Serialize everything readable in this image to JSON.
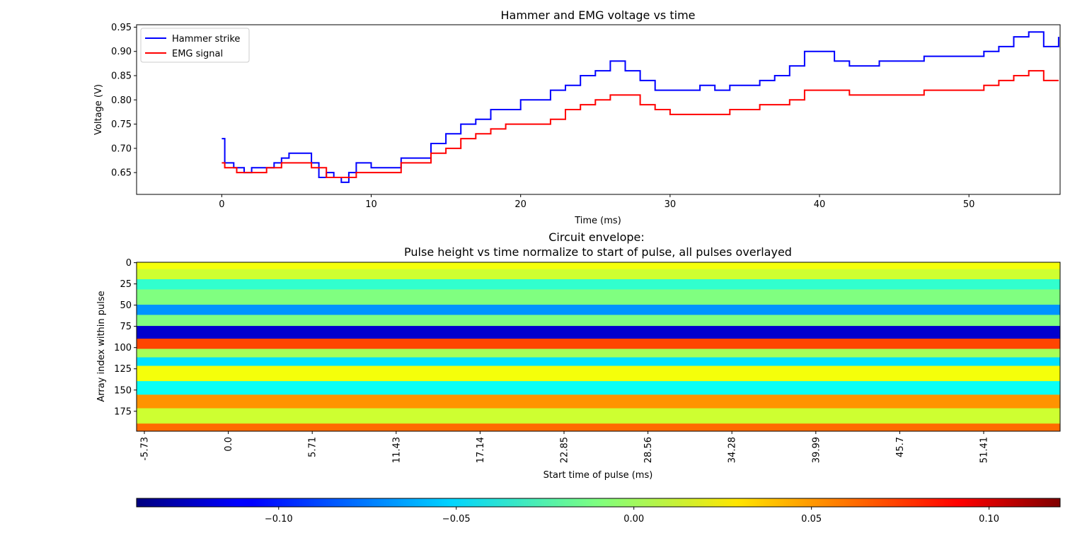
{
  "chart_data": [
    {
      "type": "line",
      "title": "Hammer and EMG voltage vs time",
      "xlabel": "Time (ms)",
      "ylabel": "Voltage (V)",
      "xlim": [
        -5.7,
        56.1
      ],
      "ylim": [
        0.605,
        0.955
      ],
      "xticks": [
        0,
        10,
        20,
        30,
        40,
        50
      ],
      "xtick_labels": [
        "0",
        "10",
        "20",
        "30",
        "40",
        "50"
      ],
      "yticks": [
        0.65,
        0.7,
        0.75,
        0.8,
        0.85,
        0.9,
        0.95
      ],
      "ytick_labels": [
        "0.65",
        "0.70",
        "0.75",
        "0.80",
        "0.85",
        "0.90",
        "0.95"
      ],
      "legend_position": "top-left",
      "grid": false,
      "series": [
        {
          "name": "Hammer strike",
          "color": "#0000ff",
          "points": [
            [
              0,
              0.72
            ],
            [
              0.2,
              0.67
            ],
            [
              0.8,
              0.66
            ],
            [
              1.5,
              0.65
            ],
            [
              2,
              0.66
            ],
            [
              3,
              0.66
            ],
            [
              3.5,
              0.67
            ],
            [
              4,
              0.68
            ],
            [
              4.5,
              0.69
            ],
            [
              5.5,
              0.69
            ],
            [
              6,
              0.67
            ],
            [
              6.5,
              0.64
            ],
            [
              7,
              0.65
            ],
            [
              7.5,
              0.64
            ],
            [
              8,
              0.63
            ],
            [
              8.5,
              0.65
            ],
            [
              9,
              0.67
            ],
            [
              10,
              0.66
            ],
            [
              11,
              0.66
            ],
            [
              12,
              0.68
            ],
            [
              13,
              0.68
            ],
            [
              14,
              0.71
            ],
            [
              15,
              0.73
            ],
            [
              16,
              0.75
            ],
            [
              17,
              0.76
            ],
            [
              18,
              0.78
            ],
            [
              19,
              0.78
            ],
            [
              20,
              0.8
            ],
            [
              21,
              0.8
            ],
            [
              22,
              0.82
            ],
            [
              23,
              0.83
            ],
            [
              24,
              0.85
            ],
            [
              25,
              0.86
            ],
            [
              26,
              0.88
            ],
            [
              27,
              0.86
            ],
            [
              28,
              0.84
            ],
            [
              29,
              0.82
            ],
            [
              30,
              0.82
            ],
            [
              31,
              0.82
            ],
            [
              32,
              0.83
            ],
            [
              33,
              0.82
            ],
            [
              34,
              0.83
            ],
            [
              35,
              0.83
            ],
            [
              36,
              0.84
            ],
            [
              37,
              0.85
            ],
            [
              38,
              0.87
            ],
            [
              39,
              0.9
            ],
            [
              40,
              0.9
            ],
            [
              41,
              0.88
            ],
            [
              42,
              0.87
            ],
            [
              43,
              0.87
            ],
            [
              44,
              0.88
            ],
            [
              45,
              0.88
            ],
            [
              46,
              0.88
            ],
            [
              47,
              0.89
            ],
            [
              48,
              0.89
            ],
            [
              49,
              0.89
            ],
            [
              50,
              0.89
            ],
            [
              51,
              0.9
            ],
            [
              52,
              0.91
            ],
            [
              53,
              0.93
            ],
            [
              54,
              0.94
            ],
            [
              55,
              0.91
            ],
            [
              56,
              0.93
            ]
          ]
        },
        {
          "name": "EMG signal",
          "color": "#ff0000",
          "points": [
            [
              0,
              0.67
            ],
            [
              0.2,
              0.66
            ],
            [
              1,
              0.65
            ],
            [
              2,
              0.65
            ],
            [
              3,
              0.66
            ],
            [
              4,
              0.67
            ],
            [
              5,
              0.67
            ],
            [
              6,
              0.66
            ],
            [
              7,
              0.64
            ],
            [
              8,
              0.64
            ],
            [
              9,
              0.65
            ],
            [
              10,
              0.65
            ],
            [
              11,
              0.65
            ],
            [
              12,
              0.67
            ],
            [
              13,
              0.67
            ],
            [
              14,
              0.69
            ],
            [
              15,
              0.7
            ],
            [
              16,
              0.72
            ],
            [
              17,
              0.73
            ],
            [
              18,
              0.74
            ],
            [
              19,
              0.75
            ],
            [
              20,
              0.75
            ],
            [
              21,
              0.75
            ],
            [
              22,
              0.76
            ],
            [
              23,
              0.78
            ],
            [
              24,
              0.79
            ],
            [
              25,
              0.8
            ],
            [
              26,
              0.81
            ],
            [
              27,
              0.81
            ],
            [
              28,
              0.79
            ],
            [
              29,
              0.78
            ],
            [
              30,
              0.77
            ],
            [
              31,
              0.77
            ],
            [
              32,
              0.77
            ],
            [
              33,
              0.77
            ],
            [
              34,
              0.78
            ],
            [
              35,
              0.78
            ],
            [
              36,
              0.79
            ],
            [
              37,
              0.79
            ],
            [
              38,
              0.8
            ],
            [
              39,
              0.82
            ],
            [
              40,
              0.82
            ],
            [
              41,
              0.82
            ],
            [
              42,
              0.81
            ],
            [
              43,
              0.81
            ],
            [
              44,
              0.81
            ],
            [
              45,
              0.81
            ],
            [
              46,
              0.81
            ],
            [
              47,
              0.82
            ],
            [
              48,
              0.82
            ],
            [
              49,
              0.82
            ],
            [
              50,
              0.82
            ],
            [
              51,
              0.83
            ],
            [
              52,
              0.84
            ],
            [
              53,
              0.85
            ],
            [
              54,
              0.86
            ],
            [
              55,
              0.84
            ],
            [
              56,
              0.84
            ]
          ]
        }
      ]
    },
    {
      "type": "heatmap",
      "title_line1": "Circuit envelope:",
      "title_line2": "Pulse height vs time normalize to start of pulse, all pulses overlayed",
      "xlabel": "Start time of pulse (ms)",
      "ylabel": "Array index within pulse",
      "xlim": [
        -5.73,
        56.2
      ],
      "ylim": [
        199,
        0
      ],
      "xtick_labels": [
        "-5.73",
        "0.0",
        "5.71",
        "11.43",
        "17.14",
        "22.85",
        "28.56",
        "34.28",
        "39.99",
        "45.7",
        "51.41"
      ],
      "ytick_labels": [
        "0",
        "25",
        "50",
        "75",
        "100",
        "125",
        "150",
        "175"
      ],
      "colormap": "jet",
      "colorbar": {
        "range": [
          -0.14,
          0.12
        ],
        "ticks": [
          -0.1,
          -0.05,
          0.0,
          0.05,
          0.1
        ],
        "tick_labels": [
          "−0.10",
          "−0.05",
          "0.00",
          "0.05",
          "0.10"
        ]
      },
      "bands": [
        {
          "row_start": 0,
          "row_end": 8,
          "value": 0.02
        },
        {
          "row_start": 8,
          "row_end": 20,
          "value": 0.01
        },
        {
          "row_start": 20,
          "row_end": 32,
          "value": -0.03
        },
        {
          "row_start": 32,
          "row_end": 50,
          "value": -0.01
        },
        {
          "row_start": 50,
          "row_end": 62,
          "value": -0.07
        },
        {
          "row_start": 62,
          "row_end": 75,
          "value": -0.01
        },
        {
          "row_start": 75,
          "row_end": 90,
          "value": -0.12
        },
        {
          "row_start": 90,
          "row_end": 102,
          "value": 0.07
        },
        {
          "row_start": 102,
          "row_end": 112,
          "value": 0.0
        },
        {
          "row_start": 112,
          "row_end": 122,
          "value": -0.05
        },
        {
          "row_start": 122,
          "row_end": 140,
          "value": 0.02
        },
        {
          "row_start": 140,
          "row_end": 156,
          "value": -0.04
        },
        {
          "row_start": 156,
          "row_end": 172,
          "value": 0.05
        },
        {
          "row_start": 172,
          "row_end": 190,
          "value": 0.01
        },
        {
          "row_start": 190,
          "row_end": 199,
          "value": 0.06
        }
      ]
    }
  ]
}
